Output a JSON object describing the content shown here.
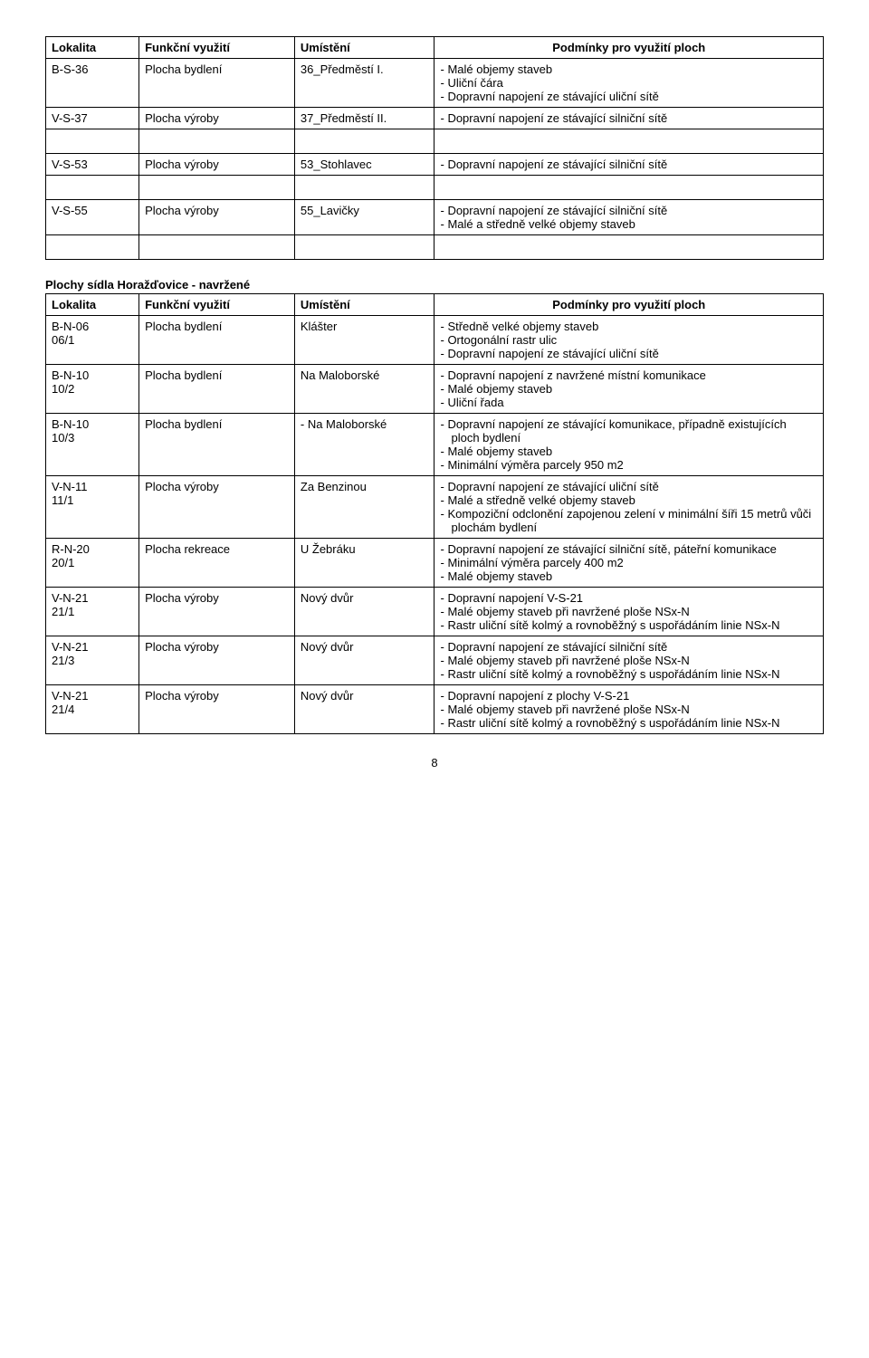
{
  "table1": {
    "headers": [
      "Lokalita",
      "Funkční využití",
      "Umístění",
      "Podmínky pro využití ploch"
    ],
    "rows": [
      {
        "lok": "B-S-36",
        "funk": "Plocha bydlení",
        "umis": "36_Předměstí I.",
        "pod": [
          "Malé objemy staveb",
          "Uliční čára",
          "Dopravní napojení ze stávající uliční sítě"
        ]
      },
      {
        "lok": "V-S-37",
        "funk": "Plocha výroby",
        "umis": "37_Předměstí II.",
        "pod": [
          "Dopravní napojení ze stávající silniční sítě"
        ]
      },
      {
        "lok": "V-S-53",
        "funk": "Plocha výroby",
        "umis": "53_Stohlavec",
        "pod": [
          "Dopravní napojení ze stávající silniční sítě"
        ]
      },
      {
        "lok": "V-S-55",
        "funk": "Plocha výroby",
        "umis": "55_Lavičky",
        "pod": [
          "Dopravní napojení ze stávající silniční sítě",
          "Malé a středně velké objemy staveb"
        ]
      }
    ]
  },
  "section2_title": "Plochy sídla  Horažďovice - navržené",
  "table2": {
    "headers": [
      "Lokalita",
      "Funkční využití",
      "Umístění",
      "Podmínky pro využití ploch"
    ],
    "rows": [
      {
        "lok": "B-N-06\n06/1",
        "funk": "Plocha bydlení",
        "umis": "Klášter",
        "pod": [
          "Středně velké objemy staveb",
          "Ortogonální rastr ulic",
          "Dopravní napojení ze stávající uliční sítě"
        ]
      },
      {
        "lok": "B-N-10\n10/2",
        "funk": "Plocha bydlení",
        "umis": "Na Maloborské",
        "pod": [
          "Dopravní napojení z navržené místní komunikace",
          "Malé objemy staveb",
          "Uliční řada"
        ]
      },
      {
        "lok": "B-N-10\n10/3",
        "funk": "Plocha bydlení",
        "umis_dash": "Na Maloborské",
        "pod": [
          "Dopravní napojení ze stávající  komunikace, případně existujících ploch bydlení",
          "Malé objemy staveb",
          "Minimální výměra parcely 950 m2"
        ]
      },
      {
        "lok": "V-N-11\n11/1",
        "funk": "Plocha výroby",
        "umis": "Za Benzinou",
        "pod": [
          "Dopravní napojení ze stávající uliční sítě",
          "Malé a středně velké objemy staveb",
          "Kompoziční odclonění zapojenou zelení v minimální šíři 15 metrů vůči plochám bydlení"
        ]
      },
      {
        "lok": "R-N-20\n20/1",
        "funk": "Plocha rekreace",
        "umis": "U Žebráku",
        "pod": [
          "Dopravní napojení ze stávající silniční sítě, páteřní komunikace",
          "Minimální výměra parcely 400 m2",
          "Malé objemy staveb"
        ]
      },
      {
        "lok": "V-N-21\n21/1",
        "funk": "Plocha výroby",
        "umis": "Nový dvůr",
        "pod": [
          "Dopravní napojení V-S-21",
          "Malé objemy staveb při navržené ploše NSx-N",
          "Rastr uliční sítě kolmý a rovnoběžný s uspořádáním linie NSx-N"
        ]
      },
      {
        "lok": "V-N-21\n21/3",
        "funk": "Plocha výroby",
        "umis": "Nový dvůr",
        "pod": [
          "Dopravní napojení ze stávající silniční sítě",
          "Malé objemy staveb při navržené ploše NSx-N",
          "Rastr uliční sítě kolmý a rovnoběžný s uspořádáním linie NSx-N"
        ]
      },
      {
        "lok": "V-N-21\n21/4",
        "funk": "Plocha výroby",
        "umis": "Nový dvůr",
        "pod": [
          "Dopravní napojení z plochy V-S-21",
          "Malé objemy staveb při navržené ploše NSx-N",
          "Rastr uliční sítě kolmý a rovnoběžný s uspořádáním linie NSx-N"
        ]
      }
    ]
  },
  "page_number": "8"
}
